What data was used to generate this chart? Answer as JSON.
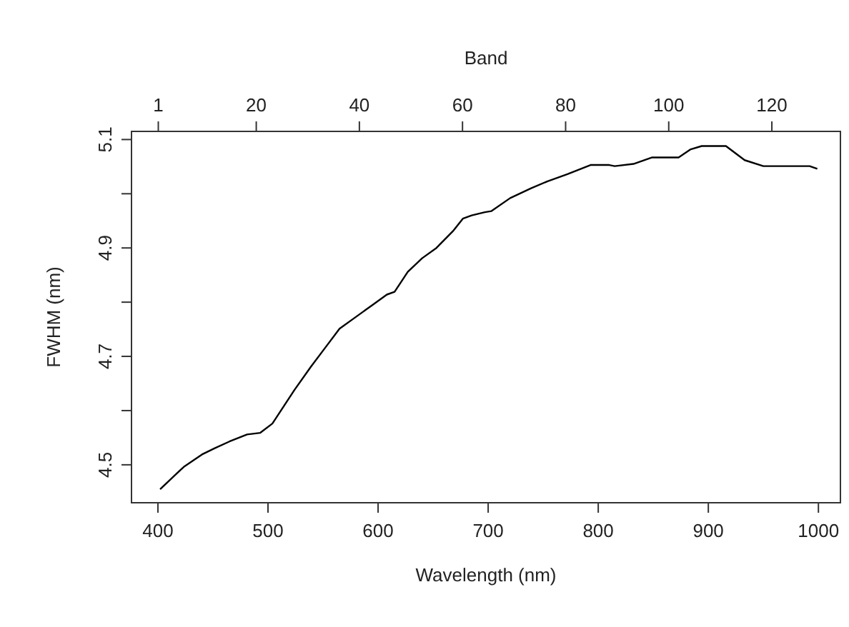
{
  "chart_data": {
    "type": "line",
    "xlabel": "Wavelength (nm)",
    "ylabel": "FWHM (nm)",
    "x2label": "Band",
    "xlim": [
      376,
      1020
    ],
    "xticks": [
      400,
      500,
      600,
      700,
      800,
      900,
      1000
    ],
    "x2lim": [
      -4.2,
      133.3
    ],
    "x2ticks": [
      1,
      20,
      40,
      60,
      80,
      100,
      120
    ],
    "ylim": [
      4.43,
      5.115
    ],
    "yticks": [
      4.5,
      {
        "value": 4.6,
        "label": null
      },
      4.7,
      {
        "value": 4.8,
        "label": null
      },
      4.9,
      {
        "value": 5.0,
        "label": null
      },
      5.1
    ],
    "grid": false,
    "marker": "none",
    "line_style": "solid",
    "series": [
      {
        "color": "#000000",
        "x": [
          402,
          416,
          424,
          440,
          452,
          465,
          481,
          493,
          504,
          524,
          539,
          552,
          565,
          580,
          595,
          608,
          615,
          627,
          640,
          653,
          668,
          677,
          685,
          697,
          703,
          720,
          739,
          754,
          772,
          793,
          810,
          815,
          832,
          849,
          873,
          884,
          894,
          916,
          933,
          950,
          992,
          999
        ],
        "values": [
          4.455,
          4.482,
          4.497,
          4.519,
          4.531,
          4.543,
          4.556,
          4.559,
          4.576,
          4.638,
          4.681,
          4.716,
          4.751,
          4.773,
          4.795,
          4.814,
          4.819,
          4.856,
          4.881,
          4.9,
          4.931,
          4.954,
          4.96,
          4.966,
          4.968,
          4.992,
          5.01,
          5.023,
          5.036,
          5.053,
          5.053,
          5.051,
          5.055,
          5.067,
          5.067,
          5.082,
          5.088,
          5.088,
          5.062,
          5.051,
          5.051,
          5.046
        ]
      }
    ]
  }
}
